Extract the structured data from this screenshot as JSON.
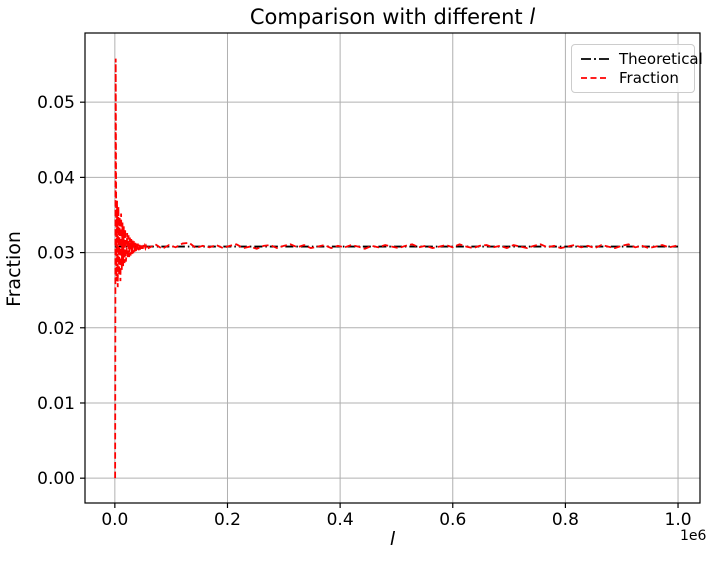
{
  "chart_data": {
    "type": "line",
    "title": "Comparison with different l",
    "title_prefix": "Comparison with different ",
    "title_math": "l",
    "xlabel": "l",
    "ylabel": "Fraction",
    "x_offset_label": "1e6",
    "xlim": [
      -53000,
      1039000
    ],
    "ylim": [
      -0.0033,
      0.0592
    ],
    "grid": true,
    "legend_position": "upper right",
    "colors": {
      "grid": "#b0b0b0",
      "axes": "#000000",
      "background": "#ffffff"
    },
    "x_ticks": {
      "values": [
        0,
        200000,
        400000,
        600000,
        800000,
        1000000
      ],
      "labels": [
        "0.0",
        "0.2",
        "0.4",
        "0.6",
        "0.8",
        "1.0"
      ]
    },
    "y_ticks": {
      "values": [
        0.0,
        0.01,
        0.02,
        0.03,
        0.04,
        0.05
      ],
      "labels": [
        "0.00",
        "0.01",
        "0.02",
        "0.03",
        "0.04",
        "0.05"
      ]
    },
    "series": [
      {
        "name": "Theoretical",
        "color": "#000000",
        "style": "dashdot",
        "points": [
          [
            0,
            0.0308
          ],
          [
            1000000,
            0.0308
          ]
        ]
      },
      {
        "name": "Fraction",
        "color": "#ff0000",
        "style": "dashed",
        "points": [
          [
            500,
            0.0
          ],
          [
            1500,
            0.0558
          ],
          [
            2700,
            0.0262
          ],
          [
            3900,
            0.0369
          ],
          [
            5100,
            0.0254
          ],
          [
            6300,
            0.0361
          ],
          [
            7500,
            0.027
          ],
          [
            8700,
            0.0347
          ],
          [
            9900,
            0.0262
          ],
          [
            11100,
            0.0352
          ],
          [
            12300,
            0.0277
          ],
          [
            13500,
            0.034
          ],
          [
            14700,
            0.0282
          ],
          [
            15900,
            0.0335
          ],
          [
            17100,
            0.0286
          ],
          [
            18300,
            0.0331
          ],
          [
            19500,
            0.0288
          ],
          [
            20700,
            0.0297
          ],
          [
            21900,
            0.0326
          ],
          [
            23100,
            0.0292
          ],
          [
            24300,
            0.0323
          ],
          [
            25500,
            0.0294
          ],
          [
            26700,
            0.032
          ],
          [
            27900,
            0.0296
          ],
          [
            29100,
            0.0318
          ],
          [
            30300,
            0.0298
          ],
          [
            31500,
            0.0316
          ],
          [
            32700,
            0.0299
          ],
          [
            33900,
            0.0315
          ],
          [
            35100,
            0.0301
          ],
          [
            36300,
            0.0313
          ],
          [
            37500,
            0.0302
          ],
          [
            38700,
            0.0312
          ],
          [
            39900,
            0.0303
          ],
          [
            41100,
            0.0312
          ],
          [
            42300,
            0.0303
          ],
          [
            43500,
            0.0311
          ],
          [
            44700,
            0.0304
          ],
          [
            45900,
            0.031
          ],
          [
            47100,
            0.0305
          ],
          [
            48300,
            0.031
          ],
          [
            49500,
            0.0305
          ],
          [
            50700,
            0.031
          ],
          [
            51900,
            0.0306
          ],
          [
            53100,
            0.0309
          ],
          [
            54300,
            0.0306
          ],
          [
            55500,
            0.0309
          ],
          [
            56700,
            0.0307
          ],
          [
            57900,
            0.0309
          ],
          [
            60000,
            0.0306
          ],
          [
            72000,
            0.0311
          ],
          [
            84000,
            0.0305
          ],
          [
            96000,
            0.031
          ],
          [
            108000,
            0.0307
          ],
          [
            120000,
            0.0312
          ],
          [
            132000,
            0.0313
          ],
          [
            144000,
            0.0306
          ],
          [
            156000,
            0.0309
          ],
          [
            168000,
            0.0307
          ],
          [
            180000,
            0.031
          ],
          [
            192000,
            0.0306
          ],
          [
            204000,
            0.0309
          ],
          [
            216000,
            0.0311
          ],
          [
            228000,
            0.0306
          ],
          [
            240000,
            0.0308
          ],
          [
            252000,
            0.0305
          ],
          [
            264000,
            0.0309
          ],
          [
            276000,
            0.031
          ],
          [
            288000,
            0.0306
          ],
          [
            300000,
            0.0309
          ],
          [
            312000,
            0.0311
          ],
          [
            324000,
            0.0307
          ],
          [
            336000,
            0.031
          ],
          [
            348000,
            0.0306
          ],
          [
            360000,
            0.0308
          ],
          [
            372000,
            0.031
          ],
          [
            384000,
            0.0306
          ],
          [
            396000,
            0.0309
          ],
          [
            408000,
            0.0307
          ],
          [
            420000,
            0.031
          ],
          [
            432000,
            0.0308
          ],
          [
            444000,
            0.0305
          ],
          [
            456000,
            0.0309
          ],
          [
            468000,
            0.0307
          ],
          [
            480000,
            0.031
          ],
          [
            492000,
            0.0308
          ],
          [
            504000,
            0.0306
          ],
          [
            516000,
            0.0309
          ],
          [
            528000,
            0.0311
          ],
          [
            540000,
            0.0307
          ],
          [
            552000,
            0.0309
          ],
          [
            564000,
            0.0306
          ],
          [
            576000,
            0.0308
          ],
          [
            588000,
            0.031
          ],
          [
            600000,
            0.0307
          ],
          [
            612000,
            0.0311
          ],
          [
            624000,
            0.0308
          ],
          [
            636000,
            0.0306
          ],
          [
            648000,
            0.0309
          ],
          [
            660000,
            0.031
          ],
          [
            672000,
            0.0307
          ],
          [
            684000,
            0.0309
          ],
          [
            696000,
            0.0306
          ],
          [
            708000,
            0.031
          ],
          [
            720000,
            0.0308
          ],
          [
            732000,
            0.0306
          ],
          [
            744000,
            0.0309
          ],
          [
            756000,
            0.0311
          ],
          [
            768000,
            0.0307
          ],
          [
            780000,
            0.0309
          ],
          [
            792000,
            0.0306
          ],
          [
            804000,
            0.0308
          ],
          [
            816000,
            0.031
          ],
          [
            828000,
            0.0307
          ],
          [
            840000,
            0.0309
          ],
          [
            852000,
            0.0306
          ],
          [
            864000,
            0.031
          ],
          [
            876000,
            0.0308
          ],
          [
            888000,
            0.0306
          ],
          [
            900000,
            0.0309
          ],
          [
            912000,
            0.0311
          ],
          [
            924000,
            0.0307
          ],
          [
            936000,
            0.0309
          ],
          [
            948000,
            0.0306
          ],
          [
            960000,
            0.0308
          ],
          [
            972000,
            0.031
          ],
          [
            984000,
            0.0307
          ],
          [
            996000,
            0.0309
          ],
          [
            1000000,
            0.031
          ]
        ]
      }
    ]
  }
}
